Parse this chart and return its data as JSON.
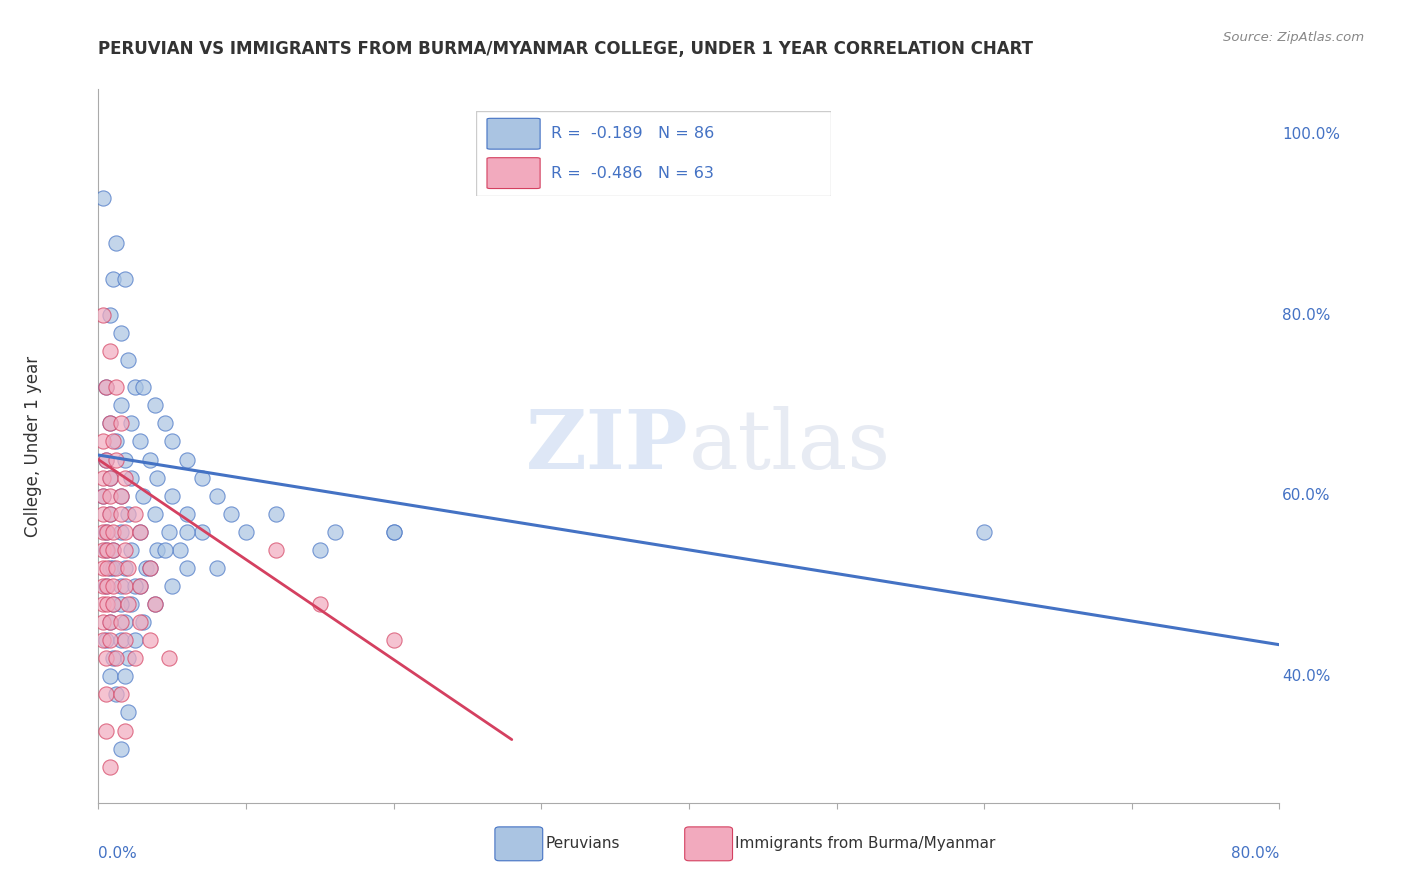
{
  "title": "PERUVIAN VS IMMIGRANTS FROM BURMA/MYANMAR COLLEGE, UNDER 1 YEAR CORRELATION CHART",
  "source": "Source: ZipAtlas.com",
  "ylabel": "College, Under 1 year",
  "legend_label1": "Peruvians",
  "legend_label2": "Immigrants from Burma/Myanmar",
  "R1": -0.189,
  "N1": 86,
  "R2": -0.486,
  "N2": 63,
  "color_blue": "#aac4e2",
  "color_pink": "#f2aabe",
  "trendline_blue": "#4472c4",
  "trendline_pink": "#d44060",
  "watermark_zip": "ZIP",
  "watermark_atlas": "atlas",
  "blue_points": [
    [
      0.003,
      0.93
    ],
    [
      0.012,
      0.88
    ],
    [
      0.01,
      0.84
    ],
    [
      0.018,
      0.84
    ],
    [
      0.008,
      0.8
    ],
    [
      0.015,
      0.78
    ],
    [
      0.02,
      0.75
    ],
    [
      0.005,
      0.72
    ],
    [
      0.025,
      0.72
    ],
    [
      0.03,
      0.72
    ],
    [
      0.015,
      0.7
    ],
    [
      0.038,
      0.7
    ],
    [
      0.008,
      0.68
    ],
    [
      0.022,
      0.68
    ],
    [
      0.045,
      0.68
    ],
    [
      0.012,
      0.66
    ],
    [
      0.028,
      0.66
    ],
    [
      0.05,
      0.66
    ],
    [
      0.005,
      0.64
    ],
    [
      0.018,
      0.64
    ],
    [
      0.035,
      0.64
    ],
    [
      0.06,
      0.64
    ],
    [
      0.008,
      0.62
    ],
    [
      0.022,
      0.62
    ],
    [
      0.04,
      0.62
    ],
    [
      0.07,
      0.62
    ],
    [
      0.003,
      0.6
    ],
    [
      0.015,
      0.6
    ],
    [
      0.03,
      0.6
    ],
    [
      0.05,
      0.6
    ],
    [
      0.08,
      0.6
    ],
    [
      0.008,
      0.58
    ],
    [
      0.02,
      0.58
    ],
    [
      0.038,
      0.58
    ],
    [
      0.06,
      0.58
    ],
    [
      0.09,
      0.58
    ],
    [
      0.005,
      0.56
    ],
    [
      0.015,
      0.56
    ],
    [
      0.028,
      0.56
    ],
    [
      0.048,
      0.56
    ],
    [
      0.01,
      0.54
    ],
    [
      0.022,
      0.54
    ],
    [
      0.04,
      0.54
    ],
    [
      0.15,
      0.54
    ],
    [
      0.008,
      0.52
    ],
    [
      0.018,
      0.52
    ],
    [
      0.032,
      0.52
    ],
    [
      0.06,
      0.52
    ],
    [
      0.005,
      0.5
    ],
    [
      0.015,
      0.5
    ],
    [
      0.028,
      0.5
    ],
    [
      0.05,
      0.5
    ],
    [
      0.01,
      0.48
    ],
    [
      0.022,
      0.48
    ],
    [
      0.038,
      0.48
    ],
    [
      0.008,
      0.46
    ],
    [
      0.018,
      0.46
    ],
    [
      0.03,
      0.46
    ],
    [
      0.005,
      0.44
    ],
    [
      0.015,
      0.44
    ],
    [
      0.025,
      0.44
    ],
    [
      0.01,
      0.42
    ],
    [
      0.02,
      0.42
    ],
    [
      0.008,
      0.4
    ],
    [
      0.018,
      0.4
    ],
    [
      0.012,
      0.38
    ],
    [
      0.02,
      0.36
    ],
    [
      0.015,
      0.32
    ],
    [
      0.6,
      0.56
    ],
    [
      0.2,
      0.56
    ],
    [
      0.16,
      0.56
    ],
    [
      0.12,
      0.58
    ],
    [
      0.1,
      0.56
    ],
    [
      0.08,
      0.52
    ],
    [
      0.07,
      0.56
    ],
    [
      0.06,
      0.56
    ],
    [
      0.055,
      0.54
    ],
    [
      0.045,
      0.54
    ],
    [
      0.035,
      0.52
    ],
    [
      0.025,
      0.5
    ],
    [
      0.015,
      0.48
    ],
    [
      0.01,
      0.52
    ],
    [
      0.005,
      0.54
    ],
    [
      0.2,
      0.56
    ]
  ],
  "pink_points": [
    [
      0.003,
      0.8
    ],
    [
      0.008,
      0.76
    ],
    [
      0.005,
      0.72
    ],
    [
      0.012,
      0.72
    ],
    [
      0.008,
      0.68
    ],
    [
      0.015,
      0.68
    ],
    [
      0.003,
      0.66
    ],
    [
      0.01,
      0.66
    ],
    [
      0.005,
      0.64
    ],
    [
      0.012,
      0.64
    ],
    [
      0.003,
      0.62
    ],
    [
      0.008,
      0.62
    ],
    [
      0.018,
      0.62
    ],
    [
      0.003,
      0.6
    ],
    [
      0.008,
      0.6
    ],
    [
      0.015,
      0.6
    ],
    [
      0.003,
      0.58
    ],
    [
      0.008,
      0.58
    ],
    [
      0.015,
      0.58
    ],
    [
      0.025,
      0.58
    ],
    [
      0.003,
      0.56
    ],
    [
      0.006,
      0.56
    ],
    [
      0.01,
      0.56
    ],
    [
      0.018,
      0.56
    ],
    [
      0.028,
      0.56
    ],
    [
      0.003,
      0.54
    ],
    [
      0.006,
      0.54
    ],
    [
      0.01,
      0.54
    ],
    [
      0.018,
      0.54
    ],
    [
      0.003,
      0.52
    ],
    [
      0.006,
      0.52
    ],
    [
      0.012,
      0.52
    ],
    [
      0.02,
      0.52
    ],
    [
      0.035,
      0.52
    ],
    [
      0.003,
      0.5
    ],
    [
      0.006,
      0.5
    ],
    [
      0.01,
      0.5
    ],
    [
      0.018,
      0.5
    ],
    [
      0.028,
      0.5
    ],
    [
      0.003,
      0.48
    ],
    [
      0.006,
      0.48
    ],
    [
      0.01,
      0.48
    ],
    [
      0.02,
      0.48
    ],
    [
      0.038,
      0.48
    ],
    [
      0.003,
      0.46
    ],
    [
      0.008,
      0.46
    ],
    [
      0.015,
      0.46
    ],
    [
      0.028,
      0.46
    ],
    [
      0.003,
      0.44
    ],
    [
      0.008,
      0.44
    ],
    [
      0.018,
      0.44
    ],
    [
      0.035,
      0.44
    ],
    [
      0.005,
      0.42
    ],
    [
      0.012,
      0.42
    ],
    [
      0.025,
      0.42
    ],
    [
      0.048,
      0.42
    ],
    [
      0.005,
      0.38
    ],
    [
      0.015,
      0.38
    ],
    [
      0.005,
      0.34
    ],
    [
      0.018,
      0.34
    ],
    [
      0.008,
      0.3
    ],
    [
      0.15,
      0.48
    ],
    [
      0.2,
      0.44
    ],
    [
      0.12,
      0.54
    ]
  ],
  "blue_trend_x": [
    0.0,
    0.8
  ],
  "blue_trend_y": [
    0.645,
    0.435
  ],
  "pink_trend_x": [
    0.0,
    0.28
  ],
  "pink_trend_y": [
    0.64,
    0.33
  ],
  "xmin": 0.0,
  "xmax": 0.8,
  "ymin": 0.26,
  "ymax": 1.05,
  "yticks": [
    0.4,
    0.6,
    0.8,
    1.0
  ],
  "ytick_labels": [
    "40.0%",
    "60.0%",
    "80.0%",
    "100.0%"
  ],
  "xtick_label_left": "0.0%",
  "xtick_label_right": "80.0%"
}
